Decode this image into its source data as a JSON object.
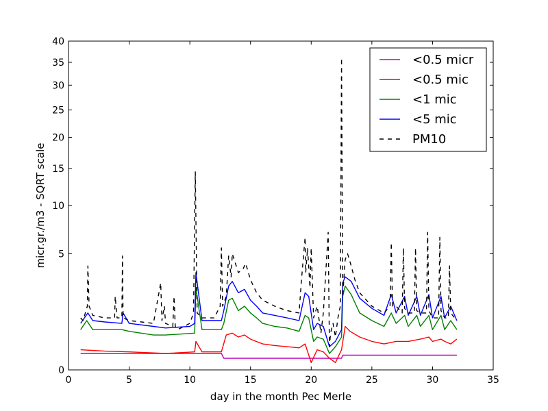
{
  "chart_data": {
    "type": "line",
    "xlabel": "day in the month Pec Merle",
    "ylabel": "micr.gr./m3 - SQRT scale",
    "y_scale": "sqrt",
    "xlim": [
      0,
      35
    ],
    "ylim": [
      0,
      40
    ],
    "x_ticks": [
      0,
      5,
      10,
      15,
      20,
      25,
      30,
      35
    ],
    "y_ticks": [
      0,
      5,
      10,
      15,
      20,
      25,
      30,
      35,
      40
    ],
    "grid": false,
    "legend_position": "top-right",
    "series": [
      {
        "name": "<0.5 micr",
        "color": "#bf00bf",
        "dash": "solid",
        "x": [
          1,
          4.5,
          10.4,
          12.6,
          12.8,
          22.5,
          22.6,
          26.5,
          32
        ],
        "y": [
          0.1,
          0.1,
          0.1,
          0.1,
          0.05,
          0.05,
          0.08,
          0.08,
          0.08
        ]
      },
      {
        "name": "<0.5 mic",
        "color": "#ff0000",
        "dash": "solid",
        "x": [
          1,
          3,
          5,
          8,
          10.4,
          10.5,
          11,
          12.6,
          13,
          13.5,
          14,
          14.5,
          15,
          16,
          17,
          18,
          19,
          19.5,
          20,
          20.5,
          21,
          21.5,
          22,
          22.5,
          22.8,
          23.2,
          24,
          25,
          26,
          27,
          28,
          29,
          29.7,
          30,
          30.7,
          31,
          31.5,
          32
        ],
        "y": [
          0.15,
          0.13,
          0.12,
          0.1,
          0.12,
          0.3,
          0.12,
          0.12,
          0.45,
          0.5,
          0.4,
          0.45,
          0.35,
          0.25,
          0.22,
          0.2,
          0.18,
          0.25,
          0.02,
          0.15,
          0.12,
          0.05,
          0.02,
          0.15,
          0.7,
          0.55,
          0.4,
          0.3,
          0.25,
          0.3,
          0.3,
          0.35,
          0.4,
          0.3,
          0.35,
          0.3,
          0.25,
          0.35
        ]
      },
      {
        "name": "<1 mic",
        "color": "#008000",
        "dash": "solid",
        "x": [
          1,
          1.5,
          2,
          3,
          4.4,
          5,
          7,
          8,
          10.4,
          10.5,
          11,
          12.6,
          12.8,
          13.2,
          13.5,
          14,
          14.5,
          15,
          15.5,
          16,
          17,
          18,
          19,
          19.5,
          19.8,
          20.2,
          20.5,
          21,
          21.5,
          22,
          22.5,
          22.6,
          22.8,
          23.3,
          24,
          25,
          26,
          26.6,
          27,
          27.7,
          28,
          28.7,
          29,
          29.7,
          30,
          30.7,
          31,
          31.5,
          32
        ],
        "y": [
          0.6,
          0.9,
          0.6,
          0.6,
          0.6,
          0.55,
          0.45,
          0.45,
          0.5,
          2.5,
          0.6,
          0.6,
          0.8,
          1.8,
          1.9,
          1.3,
          1.5,
          1.2,
          1.0,
          0.8,
          0.7,
          0.65,
          0.55,
          1.1,
          1.0,
          0.3,
          0.4,
          0.35,
          0.1,
          0.2,
          0.4,
          2.0,
          2.6,
          2.1,
          1.2,
          0.9,
          0.7,
          1.2,
          0.8,
          1.1,
          0.7,
          1.1,
          0.7,
          1.1,
          0.6,
          1.1,
          0.6,
          0.9,
          0.6
        ]
      },
      {
        "name": "<5 mic",
        "color": "#0000ff",
        "dash": "solid",
        "x": [
          1,
          1.6,
          2,
          3,
          4.4,
          4.5,
          5,
          7,
          8,
          10,
          10.4,
          10.5,
          11,
          12.6,
          12.8,
          13.2,
          13.5,
          14,
          14.5,
          15,
          15.5,
          16,
          17,
          18,
          19,
          19.5,
          19.8,
          20.2,
          20.5,
          21,
          21.5,
          22,
          22.5,
          22.6,
          22.8,
          23.3,
          24,
          25,
          26,
          26.6,
          27,
          27.7,
          28,
          28.7,
          29,
          29.7,
          30,
          30.7,
          31,
          31.5,
          32
        ],
        "y": [
          0.8,
          1.2,
          0.9,
          0.85,
          0.8,
          1.2,
          0.8,
          0.7,
          0.65,
          0.7,
          0.8,
          3.5,
          0.9,
          0.9,
          1.3,
          2.6,
          2.9,
          2.2,
          2.4,
          1.8,
          1.5,
          1.2,
          1.1,
          1.0,
          0.9,
          2.2,
          2.0,
          0.6,
          0.8,
          0.7,
          0.2,
          0.3,
          0.6,
          2.8,
          3.2,
          2.9,
          1.9,
          1.4,
          1.1,
          2.1,
          1.2,
          2.0,
          1.1,
          2.0,
          1.1,
          2.1,
          1.0,
          2.0,
          1.0,
          1.5,
          0.9
        ]
      },
      {
        "name": "PM10",
        "color": "#000000",
        "dash": "dashed",
        "x": [
          1,
          1.2,
          1.55,
          1.6,
          1.7,
          2,
          3,
          3.8,
          3.85,
          4,
          4.4,
          4.45,
          4.5,
          5,
          6,
          7,
          7.6,
          7.7,
          7.9,
          8,
          8.6,
          8.7,
          8.8,
          9,
          10,
          10.3,
          10.45,
          10.6,
          11,
          12,
          12.5,
          12.6,
          12.7,
          13,
          13.2,
          13.4,
          13.5,
          14,
          14.4,
          14.6,
          15,
          15.5,
          16,
          17,
          18,
          19,
          19.2,
          19.5,
          19.55,
          19.7,
          19.9,
          20,
          20.2,
          20.5,
          20.8,
          21,
          21.4,
          21.5,
          21.6,
          21.8,
          22,
          22.2,
          22.4,
          22.5,
          22.6,
          22.8,
          23,
          23.3,
          23.6,
          24,
          25,
          26,
          26.5,
          26.6,
          26.7,
          27,
          27.5,
          27.6,
          27.7,
          28,
          28.5,
          28.6,
          28.7,
          29,
          29.5,
          29.6,
          29.7,
          30,
          30.5,
          30.6,
          30.7,
          31,
          31.3,
          31.4,
          31.5,
          32
        ],
        "y": [
          1.0,
          0.9,
          1.5,
          4.0,
          1.5,
          1.1,
          1.0,
          1.0,
          2.0,
          1.0,
          1.0,
          4.8,
          1.0,
          0.9,
          0.85,
          0.8,
          2.8,
          0.9,
          1.5,
          0.8,
          0.7,
          2.0,
          0.7,
          0.6,
          0.8,
          1.2,
          14.5,
          1.2,
          1.0,
          1.0,
          1.5,
          5.5,
          1.5,
          2.0,
          4.8,
          3.2,
          5.0,
          3.5,
          3.8,
          4.2,
          3.0,
          2.2,
          1.8,
          1.5,
          1.3,
          1.2,
          3.0,
          6.5,
          3.5,
          5.5,
          2.5,
          5.5,
          1.0,
          1.5,
          0.5,
          1.2,
          7.0,
          0.2,
          0.5,
          0.8,
          0.4,
          1.0,
          1.5,
          36.0,
          2.0,
          4.5,
          5.0,
          4.0,
          3.0,
          2.2,
          1.5,
          1.2,
          1.5,
          6.0,
          1.5,
          1.5,
          1.2,
          5.5,
          1.4,
          1.2,
          1.2,
          5.5,
          1.3,
          1.2,
          1.2,
          7.0,
          1.3,
          1.0,
          1.0,
          6.5,
          1.3,
          1.0,
          1.0,
          4.0,
          1.2,
          0.9
        ]
      }
    ]
  }
}
